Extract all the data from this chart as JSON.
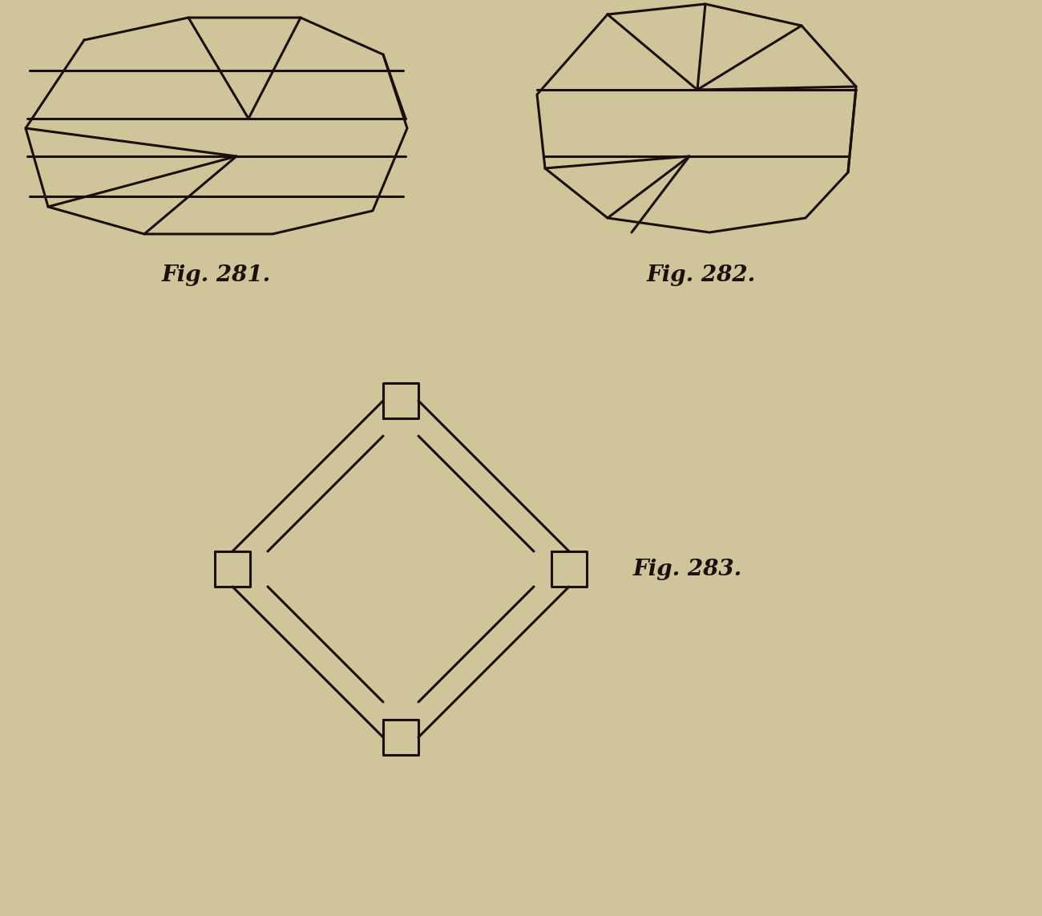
{
  "bg_color": "#cfc49a",
  "line_color": "#1a1008",
  "line_width": 2.2,
  "fig281_label": "Fig. 281.",
  "fig282_label": "Fig. 282.",
  "fig283_label": "Fig. 283.",
  "label_fontsize": 20,
  "label_font": "serif"
}
